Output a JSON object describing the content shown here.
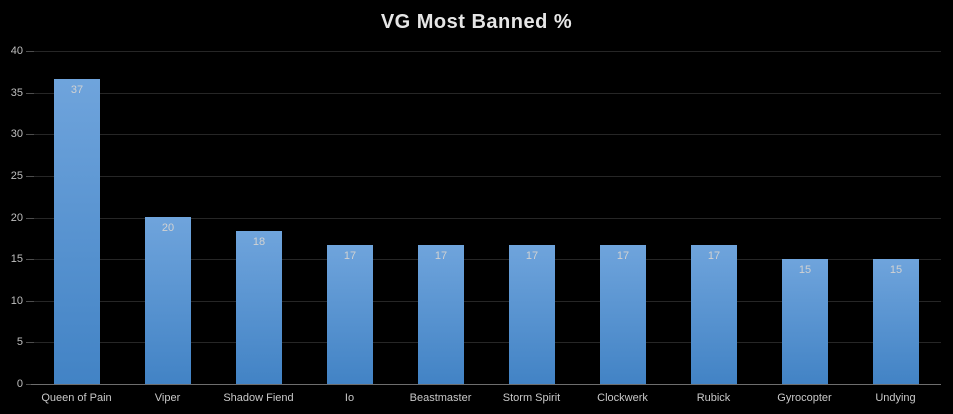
{
  "title": "VG Most Banned %",
  "colors": {
    "background": "#000000",
    "title_text": "#e6e6e6",
    "gridline": "#262626",
    "axis_line": "#6e6e6e",
    "tick_mark": "#4d4d4d",
    "axis_label": "#bfbfbf",
    "data_label": "#d2d2d2",
    "category_label": "#c9c9c9",
    "bar_top": "#6fa4dc",
    "bar_bottom": "#4283c5"
  },
  "chart_data": {
    "type": "bar",
    "title": "VG Most Banned %",
    "categories": [
      "Queen of Pain",
      "Viper",
      "Shadow Fiend",
      "Io",
      "Beastmaster",
      "Storm Spirit",
      "Clockwerk",
      "Rubick",
      "Gyrocopter",
      "Undying"
    ],
    "values": [
      36.67,
      20,
      18.33,
      16.67,
      16.67,
      16.67,
      16.67,
      16.67,
      15,
      15
    ],
    "data_labels": [
      "37",
      "20",
      "18",
      "17",
      "17",
      "17",
      "17",
      "17",
      "15",
      "15"
    ],
    "xlabel": "",
    "ylabel": "",
    "ylim": [
      0,
      40
    ],
    "yticks": [
      0,
      5,
      10,
      15,
      20,
      25,
      30,
      35,
      40
    ],
    "grid": true,
    "legend": false,
    "data_labels_position": "inside-top",
    "background": "dark"
  }
}
